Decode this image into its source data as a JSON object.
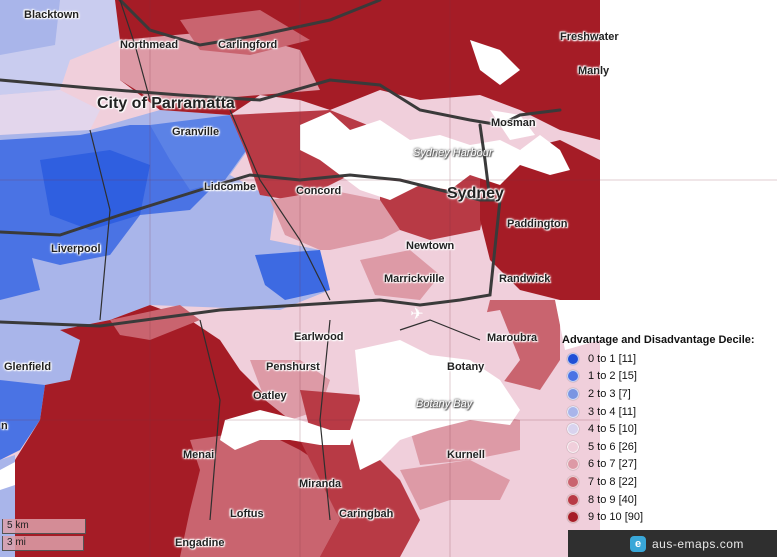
{
  "map": {
    "places": [
      {
        "id": "blacktown",
        "label": "Blacktown"
      },
      {
        "id": "northmead",
        "label": "Northmead"
      },
      {
        "id": "carlingford",
        "label": "Carlingford"
      },
      {
        "id": "freshwater",
        "label": "Freshwater"
      },
      {
        "id": "manly",
        "label": "Manly"
      },
      {
        "id": "parramatta",
        "label": "City of Parramatta"
      },
      {
        "id": "granville",
        "label": "Granville"
      },
      {
        "id": "mosman",
        "label": "Mosman"
      },
      {
        "id": "lidcombe",
        "label": "Lidcombe"
      },
      {
        "id": "concord",
        "label": "Concord"
      },
      {
        "id": "sydney",
        "label": "Sydney"
      },
      {
        "id": "paddington",
        "label": "Paddington"
      },
      {
        "id": "liverpool",
        "label": "Liverpool"
      },
      {
        "id": "newtown",
        "label": "Newtown"
      },
      {
        "id": "marrickville",
        "label": "Marrickville"
      },
      {
        "id": "randwick",
        "label": "Randwick"
      },
      {
        "id": "earlwood",
        "label": "Earlwood"
      },
      {
        "id": "maroubra",
        "label": "Maroubra"
      },
      {
        "id": "glenfield",
        "label": "Glenfield"
      },
      {
        "id": "penshurst",
        "label": "Penshurst"
      },
      {
        "id": "botany",
        "label": "Botany"
      },
      {
        "id": "oatley",
        "label": "Oatley"
      },
      {
        "id": "menai",
        "label": "Menai"
      },
      {
        "id": "kurnell",
        "label": "Kurnell"
      },
      {
        "id": "miranda",
        "label": "Miranda"
      },
      {
        "id": "loftus",
        "label": "Loftus"
      },
      {
        "id": "caringbah",
        "label": "Caringbah"
      },
      {
        "id": "engadine",
        "label": "Engadine"
      },
      {
        "id": "edge-n",
        "label": "n"
      }
    ],
    "water_labels": [
      {
        "id": "sydney-harbour",
        "label": "Sydney Harbour"
      },
      {
        "id": "botany-bay",
        "label": "Botany Bay"
      }
    ]
  },
  "legend": {
    "title": "Advantage and Disadvantage Decile:",
    "items": [
      {
        "label": "0 to 1 [11]",
        "color": "#1f4fd6"
      },
      {
        "label": "1 to 2 [15]",
        "color": "#4a73e4"
      },
      {
        "label": "2 to 3 [7]",
        "color": "#7a95e2"
      },
      {
        "label": "3 to 4 [11]",
        "color": "#a9b5ea"
      },
      {
        "label": "4 to 5 [10]",
        "color": "#d9d3ee"
      },
      {
        "label": "5 to 6 [26]",
        "color": "#f0cfdb"
      },
      {
        "label": "6 to 7 [27]",
        "color": "#dd9aa6"
      },
      {
        "label": "7 to 8 [22]",
        "color": "#c9646f"
      },
      {
        "label": "8 to 9 [40]",
        "color": "#b83a45"
      },
      {
        "label": "9 to 10 [90]",
        "color": "#a51c26"
      }
    ]
  },
  "scale": {
    "km": "5 km",
    "mi": "3 mi"
  },
  "credit": {
    "text": "aus-emaps.com",
    "logo_glyph": "e"
  }
}
